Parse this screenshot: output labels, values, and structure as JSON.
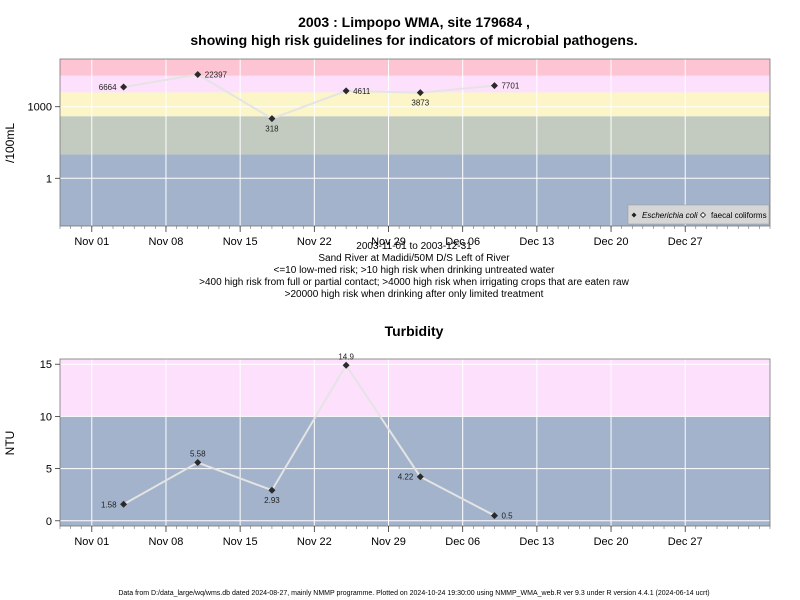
{
  "chart_data": [
    {
      "type": "line",
      "title": "2003 : Limpopo WMA, site 179684 ,",
      "subtitle": "showing high risk guidelines for indicators of microbial pathogens.",
      "ylabel": "/100mL",
      "yscale": "log10",
      "y_ticks": [
        1,
        1000
      ],
      "x_ticks": [
        "Nov 01",
        "Nov 08",
        "Nov 15",
        "Nov 22",
        "Nov 29",
        "Dec 06",
        "Dec 13",
        "Dec 20",
        "Dec 27"
      ],
      "x_tick_dates": [
        "2003-11-01",
        "2003-11-08",
        "2003-11-15",
        "2003-11-22",
        "2003-11-29",
        "2003-12-06",
        "2003-12-13",
        "2003-12-20",
        "2003-12-27"
      ],
      "xlim": [
        "2003-10-29",
        "2004-01-04"
      ],
      "bands": [
        {
          "from": 0.01,
          "to": 10,
          "color": "#a2b3cb"
        },
        {
          "from": 10,
          "to": 400,
          "color": "#c3cbc0"
        },
        {
          "from": 400,
          "to": 4000,
          "color": "#fbf5c7"
        },
        {
          "from": 4000,
          "to": 20000,
          "color": "#fde0fb"
        },
        {
          "from": 20000,
          "to": 100000,
          "color": "#fdc4d3"
        }
      ],
      "series": [
        {
          "name": "Escherichia coli",
          "marker": "diamond-filled",
          "points": [
            {
              "x": "2003-11-04",
              "y": 6664,
              "label": "6664"
            },
            {
              "x": "2003-11-11",
              "y": 22397,
              "label": "22397"
            },
            {
              "x": "2003-11-18",
              "y": 318,
              "label": "318"
            },
            {
              "x": "2003-11-25",
              "y": 4611,
              "label": "4611"
            },
            {
              "x": "2003-12-02",
              "y": 3873,
              "label": "3873"
            },
            {
              "x": "2003-12-09",
              "y": 7701,
              "label": "7701"
            }
          ]
        }
      ],
      "legend": [
        {
          "label": "Escherichia coli",
          "marker": "diamond-filled"
        },
        {
          "label": "faecal coliforms",
          "marker": "diamond-open"
        }
      ],
      "legend_position": "bottom-right",
      "caption_lines": [
        "2003-11-01 to 2003-12-31",
        "Sand River at Madidi/50M D/S Left of River",
        "<=10 low-med risk; >10 high risk when drinking untreated water",
        ">400 high risk from full or partial contact; >4000 high risk when irrigating crops that are eaten raw",
        ">20000 high risk when drinking after only limited treatment"
      ]
    },
    {
      "type": "line",
      "title": "Turbidity",
      "ylabel": "NTU",
      "ylim": [
        -0.5,
        15.5
      ],
      "y_ticks": [
        0,
        5,
        10,
        15
      ],
      "x_ticks": [
        "Nov 01",
        "Nov 08",
        "Nov 15",
        "Nov 22",
        "Nov 29",
        "Dec 06",
        "Dec 13",
        "Dec 20",
        "Dec 27"
      ],
      "x_tick_dates": [
        "2003-11-01",
        "2003-11-08",
        "2003-11-15",
        "2003-11-22",
        "2003-11-29",
        "2003-12-06",
        "2003-12-13",
        "2003-12-20",
        "2003-12-27"
      ],
      "xlim": [
        "2003-10-29",
        "2004-01-04"
      ],
      "bands": [
        {
          "from": -0.5,
          "to": 10,
          "color": "#a2b3cb"
        },
        {
          "from": 10,
          "to": 15.5,
          "color": "#fde0fb"
        }
      ],
      "series": [
        {
          "name": "",
          "marker": "diamond-filled",
          "points": [
            {
              "x": "2003-11-04",
              "y": 1.58,
              "label": "1.58"
            },
            {
              "x": "2003-11-11",
              "y": 5.58,
              "label": "5.58"
            },
            {
              "x": "2003-11-18",
              "y": 2.93,
              "label": "2.93"
            },
            {
              "x": "2003-11-25",
              "y": 14.9,
              "label": "14.9"
            },
            {
              "x": "2003-12-02",
              "y": 4.22,
              "label": "4.22"
            },
            {
              "x": "2003-12-09",
              "y": 0.5,
              "label": "0.5"
            }
          ]
        }
      ]
    }
  ],
  "footer": "Data from D:/data_large/wq/wms.db dated 2024-08-27, mainly NMMP programme. Plotted on 2024-10-24 19:30:00 using NMMP_WMA_web.R ver 9.3 under R version 4.4.1 (2024-06-14 ucrt)"
}
